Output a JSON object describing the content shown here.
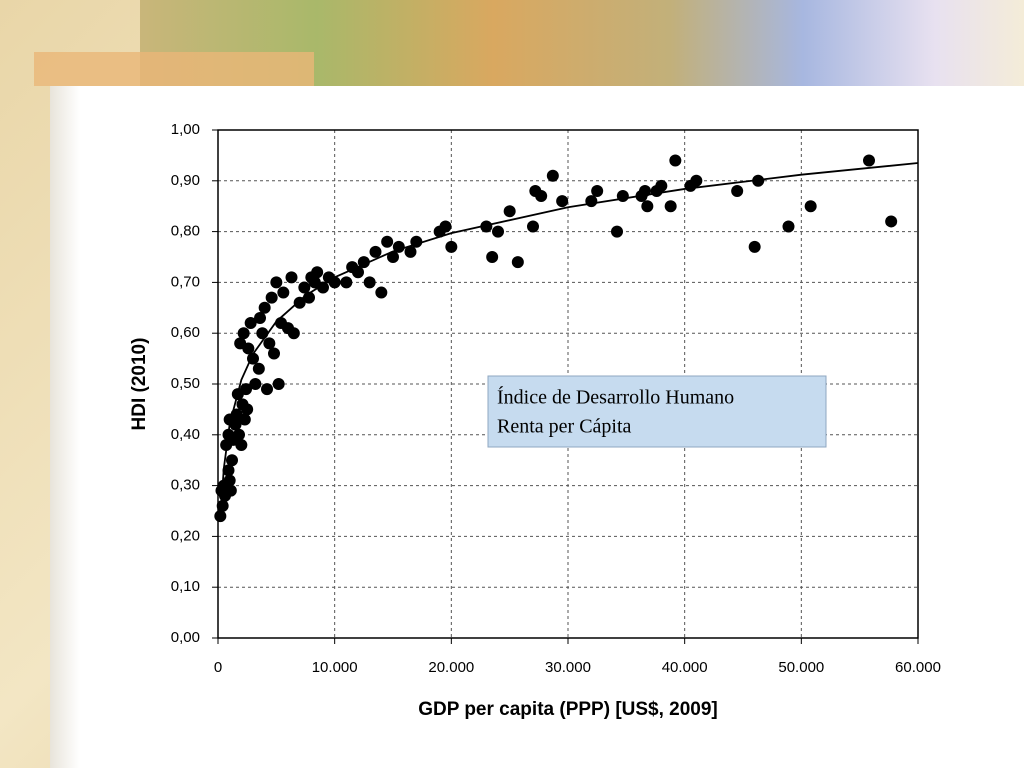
{
  "chart_data": {
    "type": "scatter",
    "xlabel": "GDP per capita (PPP) [US$, 2009]",
    "ylabel": "HDI (2010)",
    "annotations": [
      "Índice de Desarrollo Humano",
      "Renta per Cápita"
    ],
    "xlim": [
      0,
      60000
    ],
    "ylim": [
      0,
      1
    ],
    "xticks": [
      0,
      {
        "value": 10000,
        "label": "10.000"
      },
      {
        "value": 20000,
        "label": "20.000"
      },
      {
        "value": 30000,
        "label": "30.000"
      },
      {
        "value": 40000,
        "label": "40.000"
      },
      {
        "value": 50000,
        "label": "50.000"
      },
      {
        "value": 60000,
        "label": "60.000"
      }
    ],
    "yticks": [
      {
        "value": 0,
        "label": "0,00"
      },
      {
        "value": 0.1,
        "label": "0,10"
      },
      {
        "value": 0.2,
        "label": "0,20"
      },
      {
        "value": 0.3,
        "label": "0,30"
      },
      {
        "value": 0.4,
        "label": "0,40"
      },
      {
        "value": 0.5,
        "label": "0,50"
      },
      {
        "value": 0.6,
        "label": "0,60"
      },
      {
        "value": 0.7,
        "label": "0,70"
      },
      {
        "value": 0.8,
        "label": "0,80"
      },
      {
        "value": 0.9,
        "label": "0,90"
      },
      {
        "value": 1,
        "label": "1,00"
      }
    ],
    "grid": true,
    "color": "#000000",
    "x": [
      200,
      400,
      300,
      500,
      600,
      800,
      900,
      1000,
      1100,
      1200,
      700,
      900,
      1000,
      1300,
      1500,
      1600,
      1800,
      2000,
      2100,
      2300,
      2400,
      2500,
      1700,
      1900,
      2200,
      2600,
      2800,
      3000,
      3200,
      3500,
      3600,
      3800,
      4000,
      4200,
      4400,
      4600,
      4800,
      5000,
      5200,
      5400,
      5600,
      6000,
      6300,
      6500,
      7000,
      7400,
      7800,
      8000,
      8300,
      8500,
      9000,
      9500,
      10000,
      11000,
      11500,
      12000,
      12500,
      13000,
      13500,
      14000,
      14500,
      15000,
      15500,
      16500,
      17000,
      19000,
      19500,
      20000,
      23000,
      23500,
      24000,
      25000,
      25700,
      27000,
      27200,
      27700,
      28700,
      29500,
      32000,
      32500,
      34200,
      34700,
      36300,
      36600,
      36800,
      37600,
      38000,
      38800,
      39200,
      40500,
      41000,
      44500,
      46000,
      46300,
      48900,
      50800,
      55800,
      57700
    ],
    "values": [
      0.24,
      0.26,
      0.29,
      0.3,
      0.28,
      0.3,
      0.33,
      0.31,
      0.29,
      0.35,
      0.38,
      0.4,
      0.43,
      0.39,
      0.42,
      0.44,
      0.4,
      0.38,
      0.46,
      0.43,
      0.49,
      0.45,
      0.48,
      0.58,
      0.6,
      0.57,
      0.62,
      0.55,
      0.5,
      0.53,
      0.63,
      0.6,
      0.65,
      0.49,
      0.58,
      0.67,
      0.56,
      0.7,
      0.5,
      0.62,
      0.68,
      0.61,
      0.71,
      0.6,
      0.66,
      0.69,
      0.67,
      0.71,
      0.7,
      0.72,
      0.69,
      0.71,
      0.7,
      0.7,
      0.73,
      0.72,
      0.74,
      0.7,
      0.76,
      0.68,
      0.78,
      0.75,
      0.77,
      0.76,
      0.78,
      0.8,
      0.81,
      0.77,
      0.81,
      0.75,
      0.8,
      0.84,
      0.74,
      0.81,
      0.88,
      0.87,
      0.91,
      0.86,
      0.86,
      0.88,
      0.8,
      0.87,
      0.87,
      0.88,
      0.85,
      0.88,
      0.89,
      0.85,
      0.94,
      0.89,
      0.9,
      0.88,
      0.77,
      0.9,
      0.81,
      0.85,
      0.94,
      0.82
    ],
    "trend": {
      "x": [
        300,
        500,
        1000,
        2000,
        3000,
        5000,
        7500,
        10000,
        15000,
        20000,
        30000,
        40000,
        50000,
        60000
      ],
      "values": [
        0.269,
        0.334,
        0.421,
        0.508,
        0.559,
        0.623,
        0.674,
        0.71,
        0.761,
        0.797,
        0.848,
        0.884,
        0.912,
        0.935
      ]
    }
  }
}
